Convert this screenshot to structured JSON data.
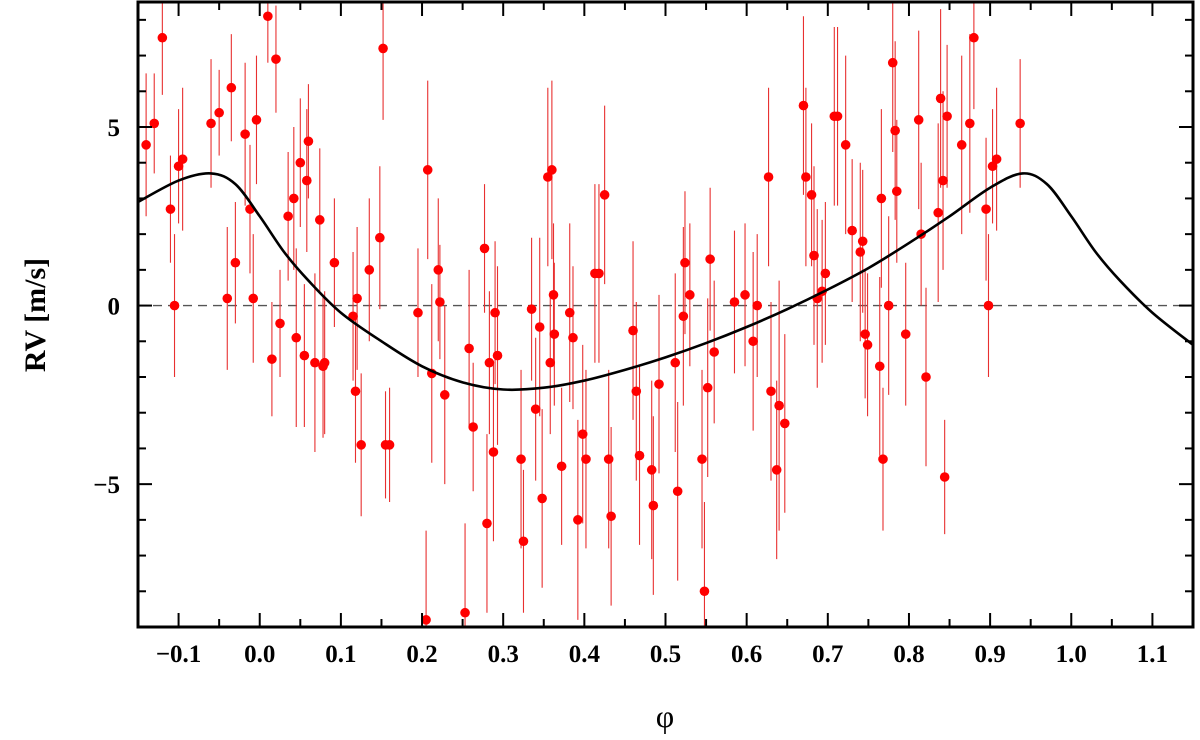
{
  "chart_data": {
    "type": "scatter",
    "title": "",
    "xlabel": "φ",
    "ylabel": "RV [m/s]",
    "xlim": [
      -0.15,
      1.15
    ],
    "ylim": [
      -9,
      8.5
    ],
    "x_ticks": [
      -0.1,
      0.0,
      0.1,
      0.2,
      0.3,
      0.4,
      0.5,
      0.6,
      0.7,
      0.8,
      0.9,
      1.0,
      1.1
    ],
    "x_tick_labels": [
      "−0.1",
      "0.0",
      "0.1",
      "0.2",
      "0.3",
      "0.4",
      "0.5",
      "0.6",
      "0.7",
      "0.8",
      "0.9",
      "1.0",
      "1.1"
    ],
    "y_ticks": [
      -5,
      0,
      5
    ],
    "y_tick_labels": [
      "−5",
      "0",
      "5"
    ],
    "grid": false,
    "legend": "none",
    "colors": {
      "points": "#ff0000",
      "errorbars": "#e83030",
      "model": "#000000",
      "zero_line": "#555555"
    },
    "zero_line": 0,
    "model_curve": {
      "name": "",
      "x": [
        -0.15,
        -0.1,
        -0.06,
        -0.03,
        0.0,
        0.03,
        0.06,
        0.1,
        0.15,
        0.2,
        0.25,
        0.3,
        0.35,
        0.4,
        0.45,
        0.5,
        0.55,
        0.6,
        0.65,
        0.7,
        0.75,
        0.8,
        0.85,
        0.9,
        0.94,
        0.97,
        1.0,
        1.03,
        1.06,
        1.1,
        1.15
      ],
      "y": [
        2.9,
        3.5,
        3.7,
        3.4,
        2.5,
        1.5,
        0.7,
        -0.2,
        -1.0,
        -1.7,
        -2.15,
        -2.35,
        -2.3,
        -2.1,
        -1.8,
        -1.45,
        -1.05,
        -0.6,
        -0.1,
        0.45,
        1.05,
        1.75,
        2.5,
        3.3,
        3.7,
        3.4,
        2.5,
        1.5,
        0.7,
        -0.2,
        -1.1
      ]
    },
    "series": [
      {
        "name": "",
        "points": [
          {
            "x": 0.01,
            "y": 8.1,
            "err": 1.3
          },
          {
            "x": 0.02,
            "y": 6.9,
            "err": 1.5
          },
          {
            "x": -0.12,
            "y": 7.5,
            "err": 1.6
          },
          {
            "x": -0.13,
            "y": 5.1,
            "err": 1.4
          },
          {
            "x": -0.14,
            "y": 4.5,
            "err": 2.0
          },
          {
            "x": -0.11,
            "y": 2.7,
            "err": 1.5
          },
          {
            "x": -0.105,
            "y": 0.0,
            "err": 2.0
          },
          {
            "x": -0.1,
            "y": 3.9,
            "err": 1.6
          },
          {
            "x": -0.095,
            "y": 4.1,
            "err": 2.0
          },
          {
            "x": -0.06,
            "y": 5.1,
            "err": 1.8
          },
          {
            "x": -0.05,
            "y": 5.4,
            "err": 1.2
          },
          {
            "x": -0.04,
            "y": 0.2,
            "err": 2.0
          },
          {
            "x": -0.035,
            "y": 6.1,
            "err": 1.5
          },
          {
            "x": -0.03,
            "y": 1.2,
            "err": 1.7
          },
          {
            "x": -0.018,
            "y": 4.8,
            "err": 2.0
          },
          {
            "x": -0.012,
            "y": 2.7,
            "err": 1.8
          },
          {
            "x": -0.008,
            "y": 0.2,
            "err": 1.8
          },
          {
            "x": -0.004,
            "y": 5.2,
            "err": 1.8
          },
          {
            "x": 0.015,
            "y": -1.5,
            "err": 1.6
          },
          {
            "x": 0.025,
            "y": -0.5,
            "err": 1.5
          },
          {
            "x": 0.035,
            "y": 2.5,
            "err": 1.8
          },
          {
            "x": 0.042,
            "y": 3.0,
            "err": 2.0
          },
          {
            "x": 0.045,
            "y": -0.9,
            "err": 2.5
          },
          {
            "x": 0.05,
            "y": 4.0,
            "err": 1.8
          },
          {
            "x": 0.055,
            "y": -1.4,
            "err": 2.0
          },
          {
            "x": 0.058,
            "y": 3.5,
            "err": 2.0
          },
          {
            "x": 0.06,
            "y": 4.6,
            "err": 1.6
          },
          {
            "x": 0.068,
            "y": -1.6,
            "err": 2.5
          },
          {
            "x": 0.074,
            "y": 2.4,
            "err": 2.0
          },
          {
            "x": 0.078,
            "y": -1.7,
            "err": 2.0
          },
          {
            "x": 0.08,
            "y": -1.6,
            "err": 2.0
          },
          {
            "x": 0.092,
            "y": 1.2,
            "err": 1.8
          },
          {
            "x": 0.115,
            "y": -0.3,
            "err": 1.8
          },
          {
            "x": 0.118,
            "y": -2.4,
            "err": 2.0
          },
          {
            "x": 0.12,
            "y": 0.2,
            "err": 2.0
          },
          {
            "x": 0.125,
            "y": -3.9,
            "err": 2.0
          },
          {
            "x": 0.135,
            "y": 1.0,
            "err": 2.0
          },
          {
            "x": 0.148,
            "y": 1.9,
            "err": 2.0
          },
          {
            "x": 0.152,
            "y": 7.2,
            "err": 2.0
          },
          {
            "x": 0.155,
            "y": -3.9,
            "err": 1.5
          },
          {
            "x": 0.16,
            "y": -3.9,
            "err": 1.6
          },
          {
            "x": 0.195,
            "y": -0.2,
            "err": 1.8
          },
          {
            "x": 0.205,
            "y": -8.8,
            "err": 2.5
          },
          {
            "x": 0.207,
            "y": 3.8,
            "err": 2.5
          },
          {
            "x": 0.212,
            "y": -1.9,
            "err": 2.5
          },
          {
            "x": 0.22,
            "y": 1.0,
            "err": 2.0
          },
          {
            "x": 0.222,
            "y": 0.1,
            "err": 1.6
          },
          {
            "x": 0.228,
            "y": -2.5,
            "err": 2.5
          },
          {
            "x": 0.253,
            "y": -8.6,
            "err": 2.5
          },
          {
            "x": 0.258,
            "y": -1.2,
            "err": 2.2
          },
          {
            "x": 0.263,
            "y": -3.4,
            "err": 1.8
          },
          {
            "x": 0.277,
            "y": 1.6,
            "err": 1.8
          },
          {
            "x": 0.28,
            "y": -6.1,
            "err": 2.5
          },
          {
            "x": 0.283,
            "y": -1.6,
            "err": 2.0
          },
          {
            "x": 0.288,
            "y": -4.1,
            "err": 2.5
          },
          {
            "x": 0.29,
            "y": -0.2,
            "err": 2.0
          },
          {
            "x": 0.293,
            "y": -1.4,
            "err": 2.5
          },
          {
            "x": 0.322,
            "y": -4.3,
            "err": 2.5
          },
          {
            "x": 0.325,
            "y": -6.6,
            "err": 2.0
          },
          {
            "x": 0.335,
            "y": -0.1,
            "err": 2.0
          },
          {
            "x": 0.34,
            "y": -2.9,
            "err": 2.0
          },
          {
            "x": 0.345,
            "y": -0.6,
            "err": 2.5
          },
          {
            "x": 0.348,
            "y": -5.4,
            "err": 2.5
          },
          {
            "x": 0.355,
            "y": 3.6,
            "err": 2.5
          },
          {
            "x": 0.358,
            "y": -1.6,
            "err": 2.0
          },
          {
            "x": 0.36,
            "y": 3.8,
            "err": 2.5
          },
          {
            "x": 0.362,
            "y": 0.3,
            "err": 2.0
          },
          {
            "x": 0.363,
            "y": -0.8,
            "err": 2.0
          },
          {
            "x": 0.372,
            "y": -4.5,
            "err": 2.2
          },
          {
            "x": 0.382,
            "y": -0.2,
            "err": 2.5
          },
          {
            "x": 0.386,
            "y": -0.9,
            "err": 2.0
          },
          {
            "x": 0.392,
            "y": -6.0,
            "err": 2.8
          },
          {
            "x": 0.398,
            "y": -3.6,
            "err": 2.5
          },
          {
            "x": 0.402,
            "y": -4.3,
            "err": 2.5
          },
          {
            "x": 0.413,
            "y": 0.9,
            "err": 2.5
          },
          {
            "x": 0.418,
            "y": 0.9,
            "err": 2.5
          },
          {
            "x": 0.425,
            "y": 3.1,
            "err": 2.5
          },
          {
            "x": 0.43,
            "y": -4.3,
            "err": 2.5
          },
          {
            "x": 0.433,
            "y": -5.9,
            "err": 2.5
          },
          {
            "x": 0.46,
            "y": -0.7,
            "err": 2.5
          },
          {
            "x": 0.464,
            "y": -2.4,
            "err": 2.5
          },
          {
            "x": 0.468,
            "y": -4.2,
            "err": 2.5
          },
          {
            "x": 0.483,
            "y": -4.6,
            "err": 2.5
          },
          {
            "x": 0.485,
            "y": -5.6,
            "err": 2.5
          },
          {
            "x": 0.492,
            "y": -2.2,
            "err": 2.5
          },
          {
            "x": 0.512,
            "y": -1.6,
            "err": 2.5
          },
          {
            "x": 0.515,
            "y": -5.2,
            "err": 2.5
          },
          {
            "x": 0.522,
            "y": -0.3,
            "err": 2.5
          },
          {
            "x": 0.524,
            "y": 1.2,
            "err": 2.0
          },
          {
            "x": 0.53,
            "y": 0.3,
            "err": 2.0
          },
          {
            "x": 0.545,
            "y": -4.3,
            "err": 2.5
          },
          {
            "x": 0.548,
            "y": -8.0,
            "err": 2.5
          },
          {
            "x": 0.552,
            "y": -2.3,
            "err": 2.5
          },
          {
            "x": 0.555,
            "y": 1.3,
            "err": 2.0
          },
          {
            "x": 0.56,
            "y": -1.3,
            "err": 2.0
          },
          {
            "x": 0.585,
            "y": 0.1,
            "err": 2.0
          },
          {
            "x": 0.598,
            "y": 0.3,
            "err": 2.0
          },
          {
            "x": 0.608,
            "y": -1.0,
            "err": 2.5
          },
          {
            "x": 0.613,
            "y": 0.0,
            "err": 2.0
          },
          {
            "x": 0.627,
            "y": 3.6,
            "err": 2.5
          },
          {
            "x": 0.63,
            "y": -2.4,
            "err": 2.5
          },
          {
            "x": 0.637,
            "y": -4.6,
            "err": 2.5
          },
          {
            "x": 0.64,
            "y": -2.8,
            "err": 3.5
          },
          {
            "x": 0.647,
            "y": -3.3,
            "err": 2.5
          },
          {
            "x": 0.67,
            "y": 5.6,
            "err": 2.5
          },
          {
            "x": 0.673,
            "y": 3.6,
            "err": 2.5
          },
          {
            "x": 0.68,
            "y": 3.1,
            "err": 2.0
          },
          {
            "x": 0.683,
            "y": 1.4,
            "err": 2.5
          },
          {
            "x": 0.687,
            "y": 0.2,
            "err": 2.5
          },
          {
            "x": 0.693,
            "y": 0.4,
            "err": 2.0
          },
          {
            "x": 0.697,
            "y": 0.9,
            "err": 2.0
          },
          {
            "x": 0.708,
            "y": 5.3,
            "err": 2.5
          },
          {
            "x": 0.712,
            "y": 5.3,
            "err": 2.5
          },
          {
            "x": 0.722,
            "y": 4.5,
            "err": 2.5
          },
          {
            "x": 0.73,
            "y": 2.1,
            "err": 2.0
          },
          {
            "x": 0.74,
            "y": 1.5,
            "err": 2.5
          },
          {
            "x": 0.743,
            "y": 1.8,
            "err": 2.0
          },
          {
            "x": 0.746,
            "y": -0.8,
            "err": 1.8
          },
          {
            "x": 0.749,
            "y": -1.1,
            "err": 2.0
          },
          {
            "x": 0.764,
            "y": -1.7,
            "err": 2.5
          },
          {
            "x": 0.766,
            "y": 3.0,
            "err": 2.5
          },
          {
            "x": 0.768,
            "y": -4.3,
            "err": 2.0
          },
          {
            "x": 0.775,
            "y": 0.0,
            "err": 2.5
          },
          {
            "x": 0.78,
            "y": 6.8,
            "err": 2.5
          },
          {
            "x": 0.783,
            "y": 4.9,
            "err": 2.5
          },
          {
            "x": 0.785,
            "y": 3.2,
            "err": 2.0
          },
          {
            "x": 0.796,
            "y": -0.8,
            "err": 2.0
          },
          {
            "x": 0.812,
            "y": 5.2,
            "err": 2.5
          },
          {
            "x": 0.815,
            "y": 2.0,
            "err": 2.0
          },
          {
            "x": 0.821,
            "y": -2.0,
            "err": 2.5
          },
          {
            "x": 0.836,
            "y": 2.6,
            "err": 2.5
          },
          {
            "x": 0.839,
            "y": 5.8,
            "err": 2.5
          },
          {
            "x": 0.842,
            "y": 3.5,
            "err": 2.5
          },
          {
            "x": 0.844,
            "y": -4.8,
            "err": 1.6
          },
          {
            "x": 0.847,
            "y": 5.3,
            "err": 2.0
          },
          {
            "x": 0.865,
            "y": 4.5,
            "err": 2.5
          },
          {
            "x": 0.875,
            "y": 5.1,
            "err": 2.5
          },
          {
            "x": 0.88,
            "y": 7.5,
            "err": 2.0
          },
          {
            "x": 0.895,
            "y": 2.7,
            "err": 2.0
          },
          {
            "x": 0.898,
            "y": 0.0,
            "err": 2.0
          },
          {
            "x": 0.903,
            "y": 3.9,
            "err": 1.6
          },
          {
            "x": 0.908,
            "y": 4.1,
            "err": 2.0
          },
          {
            "x": 0.937,
            "y": 5.1,
            "err": 1.8
          }
        ]
      }
    ]
  }
}
